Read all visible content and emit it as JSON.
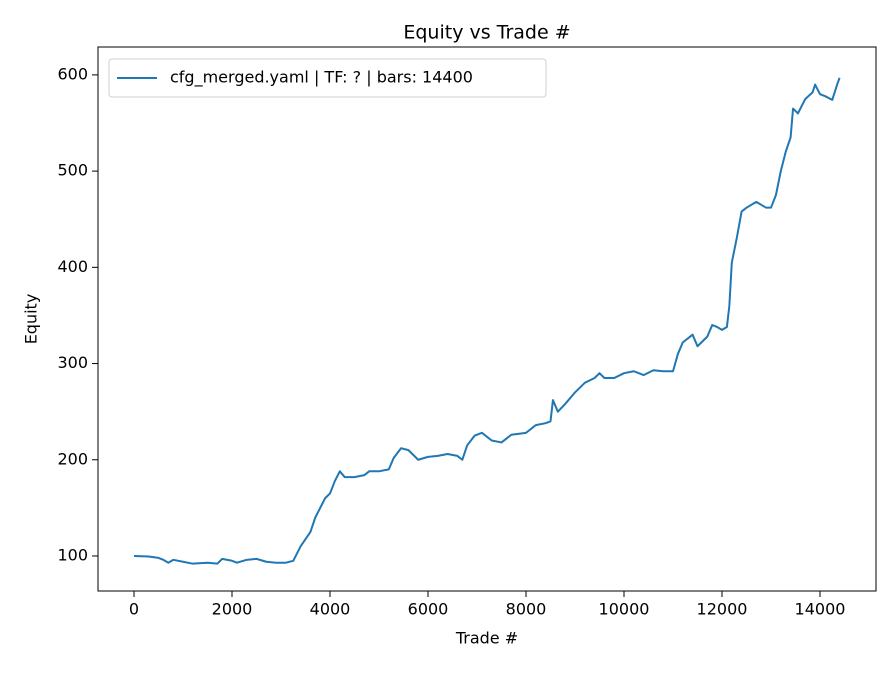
{
  "chart_data": {
    "type": "line",
    "title": "Equity vs Trade #",
    "x_label": "Trade #",
    "y_label": "Equity",
    "legend": "upper left",
    "grid": false,
    "xlim": [
      -735,
      15143
    ],
    "xticks": [
      0,
      2000,
      4000,
      6000,
      8000,
      10000,
      12000,
      14000
    ],
    "ylim": [
      63.6,
      629
    ],
    "yticks": [
      100,
      200,
      300,
      400,
      500,
      600
    ],
    "x": [
      0,
      300,
      500,
      600,
      700,
      800,
      1000,
      1200,
      1500,
      1700,
      1800,
      2000,
      2100,
      2300,
      2500,
      2700,
      2900,
      3100,
      3250,
      3400,
      3600,
      3700,
      3900,
      4000,
      4100,
      4200,
      4300,
      4500,
      4700,
      4800,
      5000,
      5200,
      5300,
      5450,
      5600,
      5800,
      6000,
      6200,
      6400,
      6600,
      6700,
      6800,
      6950,
      7100,
      7300,
      7500,
      7700,
      8000,
      8200,
      8400,
      8500,
      8550,
      8650,
      8800,
      9000,
      9200,
      9400,
      9500,
      9600,
      9800,
      10000,
      10200,
      10400,
      10600,
      10800,
      11000,
      11100,
      11200,
      11400,
      11500,
      11700,
      11800,
      11900,
      12000,
      12100,
      12150,
      12200,
      12300,
      12400,
      12500,
      12700,
      12900,
      13000,
      13100,
      13200,
      13300,
      13400,
      13450,
      13550,
      13700,
      13850,
      13900,
      14000,
      14100,
      14250,
      14350,
      14400
    ],
    "series": [
      {
        "name": "cfg_merged.yaml | TF: ? | bars: 14400",
        "color": "#1f77b4",
        "values": [
          100,
          99.5,
          98,
          96,
          93,
          96,
          94,
          92,
          93,
          92,
          97,
          95,
          93,
          96,
          97,
          94,
          93,
          93,
          95,
          110,
          125,
          140,
          160,
          165,
          178,
          188,
          182,
          182,
          184,
          188,
          188,
          190,
          202,
          212,
          210,
          200,
          203,
          204,
          206,
          204,
          200,
          215,
          225,
          228,
          220,
          218,
          226,
          228,
          236,
          238,
          240,
          262,
          250,
          258,
          270,
          280,
          285,
          290,
          285,
          285,
          290,
          292,
          288,
          293,
          292,
          292,
          310,
          322,
          330,
          318,
          328,
          340,
          338,
          335,
          338,
          360,
          405,
          430,
          458,
          462,
          468,
          462,
          462,
          475,
          500,
          520,
          535,
          565,
          560,
          575,
          582,
          590,
          580,
          578,
          574,
          590,
          597
        ]
      }
    ]
  }
}
